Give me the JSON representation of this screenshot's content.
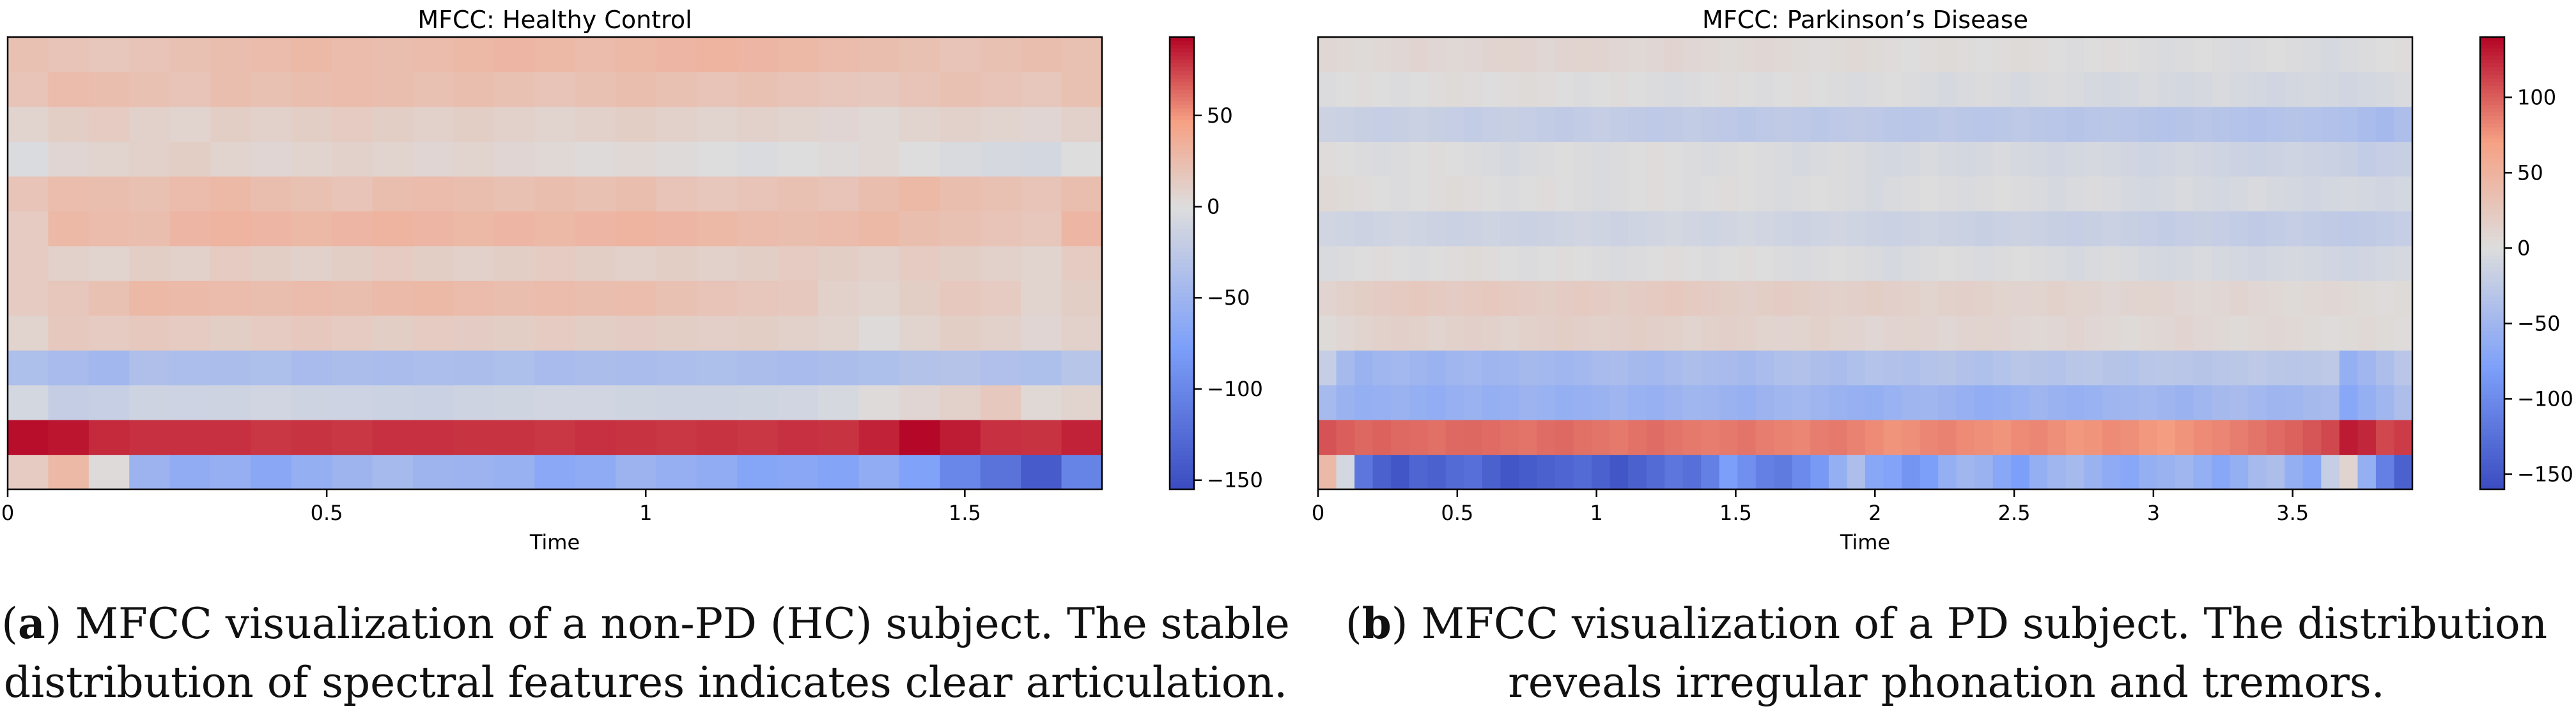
{
  "chart_data": [
    {
      "type": "heatmap",
      "title": "MFCC: Healthy Control",
      "xlabel": "Time",
      "ylabel": "",
      "xlim": [
        0,
        1.715
      ],
      "x_ticks": [
        0,
        0.5,
        1,
        1.5
      ],
      "x_tick_labels": [
        "0",
        "0.5",
        "1",
        "1.5"
      ],
      "n_rows": 13,
      "n_cols": 27,
      "row_values": [
        [
          14,
          28,
          2,
          -52,
          -61,
          -57,
          -67,
          -58,
          -51,
          -44,
          -51,
          -52,
          -55,
          -66,
          -62,
          -52,
          -57,
          -61,
          -70,
          -67,
          -71,
          -61,
          -74,
          -100,
          -119,
          -141,
          -104
        ],
        [
          90,
          88,
          82,
          80,
          80,
          80,
          78,
          79,
          78,
          80,
          80,
          79,
          79,
          78,
          80,
          79,
          78,
          79,
          78,
          80,
          79,
          84,
          92,
          86,
          80,
          79,
          84
        ],
        [
          -8,
          -20,
          -18,
          -12,
          -13,
          -12,
          -10,
          -12,
          -13,
          -14,
          -15,
          -12,
          -11,
          -10,
          -10,
          -11,
          -12,
          -12,
          -11,
          -10,
          -6,
          2,
          6,
          10,
          16,
          4,
          8
        ],
        [
          -38,
          -42,
          -48,
          -37,
          -39,
          -40,
          -38,
          -42,
          -40,
          -41,
          -39,
          -40,
          -38,
          -42,
          -40,
          -41,
          -39,
          -38,
          -40,
          -42,
          -40,
          -38,
          -34,
          -32,
          -36,
          -38,
          -30
        ],
        [
          8,
          16,
          14,
          16,
          14,
          12,
          14,
          16,
          14,
          12,
          14,
          13,
          12,
          14,
          12,
          13,
          12,
          11,
          12,
          10,
          8,
          2,
          8,
          12,
          10,
          6,
          10
        ],
        [
          14,
          18,
          22,
          28,
          27,
          26,
          24,
          26,
          24,
          27,
          28,
          26,
          24,
          26,
          24,
          25,
          22,
          20,
          18,
          16,
          10,
          8,
          12,
          16,
          14,
          8,
          12
        ],
        [
          14,
          10,
          8,
          12,
          10,
          14,
          12,
          10,
          12,
          14,
          12,
          10,
          12,
          14,
          12,
          10,
          12,
          10,
          12,
          14,
          12,
          10,
          14,
          12,
          10,
          8,
          14
        ],
        [
          14,
          28,
          26,
          24,
          30,
          32,
          30,
          28,
          30,
          32,
          30,
          28,
          30,
          28,
          30,
          32,
          30,
          28,
          26,
          24,
          26,
          28,
          24,
          22,
          20,
          18,
          30
        ],
        [
          20,
          25,
          24,
          22,
          26,
          28,
          24,
          22,
          20,
          24,
          26,
          24,
          22,
          24,
          22,
          24,
          20,
          18,
          20,
          22,
          20,
          24,
          28,
          24,
          22,
          20,
          24
        ],
        [
          -2,
          6,
          8,
          10,
          12,
          8,
          6,
          8,
          10,
          8,
          6,
          8,
          6,
          4,
          2,
          4,
          2,
          0,
          -2,
          0,
          2,
          4,
          0,
          -4,
          -6,
          -8,
          0
        ],
        [
          8,
          12,
          14,
          10,
          8,
          12,
          10,
          12,
          14,
          12,
          10,
          12,
          10,
          8,
          10,
          12,
          10,
          8,
          10,
          8,
          6,
          4,
          8,
          10,
          8,
          6,
          10
        ],
        [
          20,
          26,
          24,
          22,
          20,
          24,
          22,
          24,
          26,
          24,
          22,
          24,
          22,
          20,
          22,
          24,
          22,
          20,
          22,
          20,
          18,
          16,
          20,
          22,
          20,
          18,
          22
        ],
        [
          22,
          20,
          18,
          20,
          22,
          24,
          26,
          28,
          26,
          24,
          26,
          28,
          30,
          28,
          26,
          28,
          30,
          32,
          30,
          28,
          26,
          24,
          22,
          20,
          22,
          24,
          22
        ]
      ],
      "colorbar": {
        "vmin": -155,
        "vmax": 93,
        "ticks": [
          50,
          0,
          -50,
          -100,
          -150
        ],
        "tick_labels": [
          "50",
          "0",
          "−50",
          "−100",
          "−150"
        ]
      },
      "caption_label": "a",
      "caption_text": [
        " MFCC visualization of a non-PD (HC) subject. The stable",
        "distribution of spectral features indicates clear articulation."
      ]
    },
    {
      "type": "heatmap",
      "title": "MFCC: Parkinson’s Disease",
      "xlabel": "Time",
      "ylabel": "",
      "xlim": [
        0,
        3.93
      ],
      "x_ticks": [
        0,
        0.5,
        1,
        1.5,
        2,
        2.5,
        3,
        3.5
      ],
      "x_tick_labels": [
        "0",
        "0.5",
        "1",
        "1.5",
        "2",
        "2.5",
        "3",
        "3.5"
      ],
      "n_rows": 13,
      "n_cols": 60,
      "row_values": [
        [
          42,
          -8,
          -120,
          -140,
          -150,
          -135,
          -140,
          -130,
          -125,
          -140,
          -150,
          -145,
          -140,
          -135,
          -130,
          -140,
          -150,
          -140,
          -130,
          -120,
          -125,
          -110,
          -80,
          -95,
          -110,
          -115,
          -100,
          -85,
          -60,
          -40,
          -70,
          -75,
          -90,
          -80,
          -60,
          -50,
          -55,
          -70,
          -80,
          -60,
          -50,
          -45,
          -55,
          -65,
          -70,
          -60,
          -55,
          -50,
          -60,
          -70,
          -60,
          -45,
          -40,
          -60,
          -70,
          -20,
          10,
          -60,
          -110,
          -140
        ],
        [
          105,
          100,
          96,
          98,
          95,
          94,
          92,
          95,
          96,
          94,
          92,
          90,
          93,
          95,
          92,
          90,
          88,
          91,
          93,
          90,
          88,
          86,
          88,
          90,
          86,
          84,
          82,
          86,
          88,
          84,
          80,
          76,
          78,
          82,
          84,
          80,
          78,
          76,
          80,
          82,
          78,
          74,
          76,
          80,
          78,
          74,
          72,
          76,
          80,
          82,
          86,
          90,
          94,
          98,
          104,
          110,
          130,
          125,
          110,
          115
        ],
        [
          -45,
          -55,
          -60,
          -58,
          -55,
          -60,
          -62,
          -58,
          -55,
          -60,
          -58,
          -54,
          -56,
          -60,
          -58,
          -55,
          -52,
          -56,
          -58,
          -54,
          -50,
          -52,
          -55,
          -58,
          -54,
          -50,
          -48,
          -52,
          -55,
          -58,
          -60,
          -56,
          -52,
          -50,
          -54,
          -58,
          -62,
          -60,
          -56,
          -52,
          -55,
          -58,
          -56,
          -52,
          -50,
          -48,
          -52,
          -55,
          -50,
          -46,
          -44,
          -48,
          -52,
          -50,
          -46,
          -44,
          -70,
          -60,
          -50,
          -40
        ],
        [
          -20,
          -45,
          -55,
          -50,
          -48,
          -52,
          -55,
          -50,
          -48,
          -52,
          -50,
          -46,
          -48,
          -50,
          -48,
          -44,
          -42,
          -46,
          -48,
          -44,
          -40,
          -42,
          -44,
          -46,
          -42,
          -38,
          -36,
          -40,
          -42,
          -38,
          -34,
          -36,
          -38,
          -34,
          -32,
          -36,
          -38,
          -34,
          -30,
          -32,
          -34,
          -30,
          -28,
          -32,
          -34,
          -30,
          -28,
          -30,
          -32,
          -30,
          -28,
          -26,
          -28,
          -30,
          -28,
          -26,
          -60,
          -50,
          -40,
          -30
        ],
        [
          4,
          8,
          12,
          14,
          16,
          14,
          12,
          14,
          16,
          14,
          12,
          14,
          16,
          18,
          16,
          14,
          16,
          18,
          16,
          14,
          12,
          14,
          16,
          14,
          12,
          10,
          12,
          14,
          12,
          10,
          8,
          10,
          12,
          10,
          8,
          10,
          12,
          10,
          8,
          6,
          8,
          10,
          8,
          6,
          4,
          6,
          8,
          10,
          8,
          6,
          4,
          6,
          8,
          6,
          4,
          2,
          4,
          6,
          4,
          2
        ],
        [
          10,
          14,
          18,
          20,
          22,
          24,
          22,
          20,
          22,
          24,
          22,
          20,
          18,
          20,
          22,
          20,
          18,
          20,
          22,
          24,
          22,
          20,
          18,
          16,
          18,
          20,
          18,
          16,
          14,
          16,
          18,
          16,
          14,
          12,
          14,
          16,
          14,
          12,
          10,
          12,
          14,
          12,
          10,
          8,
          10,
          12,
          10,
          8,
          6,
          8,
          10,
          8,
          6,
          4,
          6,
          8,
          6,
          4,
          2,
          4
        ],
        [
          -4,
          -2,
          0,
          2,
          0,
          -2,
          0,
          2,
          4,
          2,
          0,
          -2,
          0,
          2,
          0,
          -2,
          -4,
          -2,
          0,
          2,
          0,
          -2,
          0,
          2,
          0,
          -2,
          -4,
          -2,
          0,
          -2,
          -4,
          -6,
          -4,
          -2,
          0,
          -2,
          -4,
          -2,
          0,
          -2,
          -4,
          -6,
          -4,
          -2,
          -4,
          -6,
          -8,
          -6,
          -4,
          -6,
          -8,
          -10,
          -8,
          -6,
          -8,
          -10,
          -12,
          -10,
          -8,
          -6
        ],
        [
          -10,
          -12,
          -14,
          -12,
          -10,
          -12,
          -14,
          -16,
          -14,
          -12,
          -14,
          -16,
          -14,
          -12,
          -10,
          -12,
          -14,
          -12,
          -10,
          -8,
          -10,
          -12,
          -10,
          -8,
          -10,
          -12,
          -14,
          -12,
          -10,
          -12,
          -14,
          -16,
          -14,
          -12,
          -14,
          -16,
          -18,
          -16,
          -14,
          -16,
          -18,
          -20,
          -18,
          -16,
          -18,
          -20,
          -22,
          -20,
          -18,
          -20,
          -22,
          -24,
          -22,
          -20,
          -22,
          -24,
          -26,
          -24,
          -22,
          -20
        ],
        [
          6,
          4,
          2,
          0,
          -2,
          0,
          2,
          4,
          2,
          0,
          -2,
          0,
          2,
          0,
          -2,
          -4,
          -2,
          0,
          2,
          0,
          -2,
          0,
          2,
          0,
          -2,
          -4,
          -2,
          0,
          -2,
          -4,
          -6,
          -4,
          -2,
          0,
          -2,
          -4,
          -2,
          0,
          -2,
          -4,
          -6,
          -4,
          -2,
          -4,
          -6,
          -8,
          -6,
          -4,
          -6,
          -8,
          -6,
          -4,
          -6,
          -8,
          -10,
          -8,
          -6,
          -8,
          -10,
          -8
        ],
        [
          2,
          0,
          -2,
          -4,
          -2,
          0,
          2,
          0,
          -2,
          -4,
          -6,
          -4,
          -2,
          0,
          -2,
          -4,
          -2,
          0,
          2,
          0,
          -2,
          -4,
          -2,
          0,
          -2,
          -4,
          -6,
          -4,
          -2,
          -4,
          -6,
          -8,
          -6,
          -4,
          -6,
          -8,
          -6,
          -4,
          -6,
          -8,
          -10,
          -8,
          -6,
          -8,
          -10,
          -12,
          -10,
          -8,
          -10,
          -12,
          -14,
          -16,
          -14,
          -12,
          -14,
          -16,
          -18,
          -22,
          -20,
          -18
        ],
        [
          -14,
          -16,
          -18,
          -20,
          -18,
          -16,
          -18,
          -20,
          -22,
          -20,
          -18,
          -20,
          -22,
          -24,
          -22,
          -20,
          -22,
          -24,
          -26,
          -24,
          -22,
          -24,
          -26,
          -28,
          -26,
          -24,
          -26,
          -28,
          -26,
          -24,
          -26,
          -28,
          -30,
          -28,
          -26,
          -28,
          -30,
          -28,
          -26,
          -28,
          -30,
          -32,
          -30,
          -28,
          -30,
          -32,
          -34,
          -32,
          -30,
          -32,
          -34,
          -36,
          -34,
          -32,
          -34,
          -36,
          -38,
          -42,
          -46,
          -40
        ],
        [
          -2,
          0,
          2,
          0,
          -2,
          0,
          2,
          4,
          2,
          0,
          2,
          4,
          2,
          0,
          -2,
          0,
          2,
          0,
          -2,
          -4,
          -2,
          0,
          2,
          0,
          -2,
          0,
          2,
          0,
          -2,
          -4,
          -2,
          0,
          -2,
          -4,
          -6,
          -4,
          -2,
          -4,
          -6,
          -4,
          -2,
          -4,
          -6,
          -8,
          -6,
          -4,
          -6,
          -8,
          -6,
          -4,
          -6,
          -8,
          -10,
          -8,
          -6,
          -8,
          -10,
          -8,
          -6,
          -4
        ],
        [
          8,
          6,
          4,
          6,
          8,
          10,
          8,
          6,
          8,
          10,
          12,
          10,
          8,
          10,
          12,
          10,
          8,
          6,
          8,
          10,
          8,
          6,
          4,
          6,
          8,
          6,
          4,
          2,
          4,
          6,
          4,
          2,
          0,
          2,
          4,
          2,
          0,
          2,
          4,
          2,
          0,
          -2,
          0,
          2,
          0,
          -2,
          -4,
          -2,
          0,
          -2,
          -4,
          -2,
          0,
          -2,
          -4,
          -6,
          -4,
          -2,
          0,
          2
        ]
      ],
      "colorbar": {
        "vmin": -160,
        "vmax": 140,
        "ticks": [
          100,
          50,
          0,
          -50,
          -100,
          -150
        ],
        "tick_labels": [
          "100",
          "50",
          "0",
          "−50",
          "−100",
          "−150"
        ]
      },
      "caption_label": "b",
      "caption_text": [
        " MFCC visualization of a PD subject. The distribution",
        "reveals irregular phonation and tremors."
      ]
    }
  ]
}
